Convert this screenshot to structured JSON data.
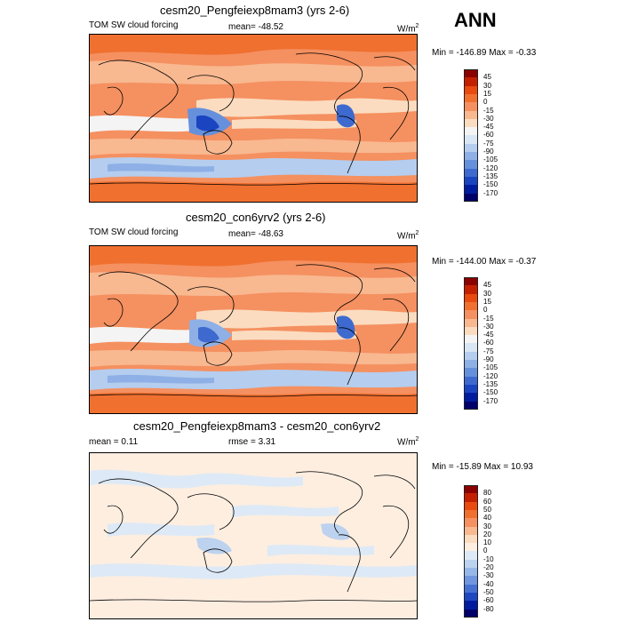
{
  "season": "ANN",
  "panels": [
    {
      "id": "p1",
      "title": "cesm20_Pengfeiexp8mam3 (yrs 2-6)",
      "left_label": "TOM SW cloud forcing",
      "center_label": "mean= -48.52",
      "units": "W/m",
      "units_sup": "2",
      "minmax": "Min = -146.89 Max =  -0.33"
    },
    {
      "id": "p2",
      "title": "cesm20_con6yrv2 (yrs 2-6)",
      "left_label": "TOM SW cloud forcing",
      "center_label": "mean= -48.63",
      "units": "W/m",
      "units_sup": "2",
      "minmax": "Min = -144.00 Max =  -0.37"
    },
    {
      "id": "p3",
      "title": "cesm20_Pengfeiexp8mam3 - cesm20_con6yrv2",
      "left_label": "mean =   0.11",
      "center_label": "rmse =   3.31",
      "units": "W/m",
      "units_sup": "2",
      "minmax": "Min = -15.89 Max =  10.93"
    }
  ],
  "chart_data": [
    {
      "type": "heatmap",
      "title": "cesm20_Pengfeiexp8mam3 (yrs 2-6)",
      "variable": "TOM SW cloud forcing",
      "mean": -48.52,
      "min": -146.89,
      "max": -0.33,
      "colorbar_levels": [
        "45",
        "30",
        "15",
        "0",
        "-15",
        "-30",
        "-45",
        "-60",
        "-75",
        "-90",
        "-105",
        "-120",
        "-135",
        "-150",
        "-170"
      ],
      "colors": [
        "#8b0000",
        "#c42000",
        "#e84a10",
        "#f07030",
        "#f59060",
        "#f8b890",
        "#fbdcc0",
        "#f4f4f4",
        "#d8e6f5",
        "#b5cdee",
        "#8eb0e6",
        "#6690dc",
        "#3e6ad0",
        "#1a44c0",
        "#001c9e",
        "#00006a"
      ]
    },
    {
      "type": "heatmap",
      "title": "cesm20_con6yrv2 (yrs 2-6)",
      "variable": "TOM SW cloud forcing",
      "mean": -48.63,
      "min": -144.0,
      "max": -0.37,
      "colorbar_levels": [
        "45",
        "30",
        "15",
        "0",
        "-15",
        "-30",
        "-45",
        "-60",
        "-75",
        "-90",
        "-105",
        "-120",
        "-135",
        "-150",
        "-170"
      ],
      "colors": [
        "#8b0000",
        "#c42000",
        "#e84a10",
        "#f07030",
        "#f59060",
        "#f8b890",
        "#fbdcc0",
        "#f4f4f4",
        "#d8e6f5",
        "#b5cdee",
        "#8eb0e6",
        "#6690dc",
        "#3e6ad0",
        "#1a44c0",
        "#001c9e",
        "#00006a"
      ]
    },
    {
      "type": "heatmap",
      "title": "cesm20_Pengfeiexp8mam3 - cesm20_con6yrv2",
      "mean": 0.11,
      "rmse": 3.31,
      "min": -15.89,
      "max": 10.93,
      "colorbar_levels": [
        "80",
        "60",
        "50",
        "40",
        "30",
        "20",
        "10",
        "0",
        "-10",
        "-20",
        "-30",
        "-40",
        "-50",
        "-60",
        "-80"
      ],
      "colors": [
        "#8b0000",
        "#c42000",
        "#e84a10",
        "#f07030",
        "#f59060",
        "#f8b890",
        "#fbdcc0",
        "#fdeee0",
        "#dde9f6",
        "#bcd2ef",
        "#97b7e8",
        "#6f96de",
        "#4670d2",
        "#1e48c0",
        "#001c9e",
        "#00006a"
      ]
    }
  ]
}
